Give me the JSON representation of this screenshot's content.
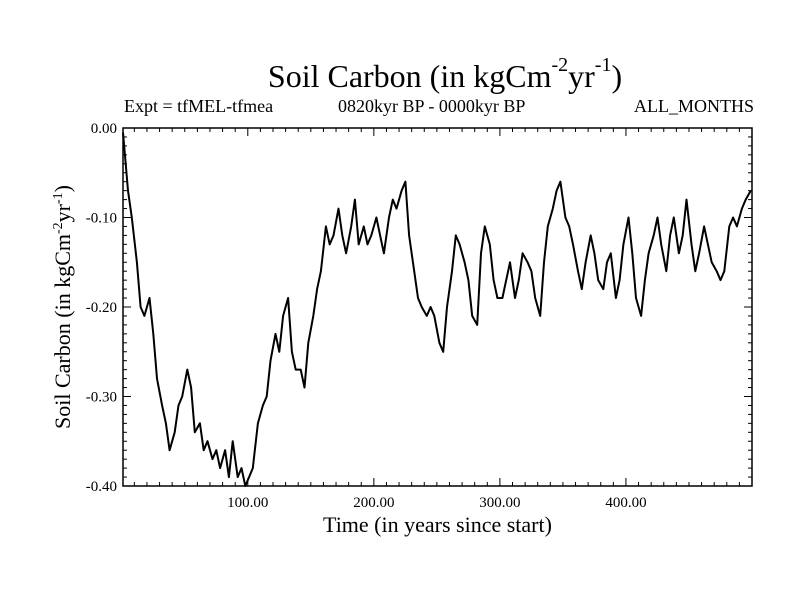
{
  "chart_data": {
    "type": "line",
    "title": "Soil Carbon (in kgCm-2yr-1)",
    "title_parts": {
      "main": "Soil Carbon (in kgCm",
      "exp1": "-2",
      "mid": "yr",
      "exp2": "-1",
      "end": ")"
    },
    "subtitle_left": "Expt = tfMEL-tfmea",
    "subtitle_center": "0820kyr BP - 0000kyr BP",
    "subtitle_right": "ALL_MONTHS",
    "xlabel": "Time (in years since start)",
    "ylabel": "Soil Carbon (in kgCm-2yr-1)",
    "xlim": [
      1,
      500
    ],
    "ylim": [
      -0.4,
      0.0
    ],
    "x_ticks": [
      100,
      200,
      300,
      400
    ],
    "x_tick_labels": [
      "100.00",
      "200.00",
      "300.00",
      "400.00"
    ],
    "y_ticks": [
      0.0,
      -0.1,
      -0.2,
      -0.3,
      -0.4
    ],
    "y_tick_labels": [
      "0.00",
      "-0.10",
      "-0.20",
      "-0.30",
      "-0.40"
    ],
    "series": [
      {
        "name": "Soil Carbon",
        "x": [
          1,
          5,
          8,
          12,
          15,
          18,
          22,
          25,
          28,
          32,
          35,
          38,
          42,
          45,
          48,
          52,
          55,
          58,
          62,
          65,
          68,
          72,
          75,
          78,
          82,
          85,
          88,
          92,
          95,
          98,
          101,
          104,
          108,
          112,
          115,
          118,
          122,
          125,
          128,
          132,
          135,
          138,
          142,
          145,
          148,
          152,
          155,
          158,
          162,
          165,
          168,
          172,
          175,
          178,
          182,
          185,
          188,
          192,
          195,
          198,
          202,
          205,
          208,
          212,
          215,
          218,
          222,
          225,
          228,
          232,
          235,
          238,
          242,
          245,
          248,
          252,
          255,
          258,
          262,
          265,
          268,
          272,
          275,
          278,
          282,
          285,
          288,
          292,
          295,
          298,
          302,
          305,
          308,
          312,
          315,
          318,
          322,
          325,
          328,
          332,
          335,
          338,
          342,
          345,
          348,
          352,
          355,
          358,
          362,
          365,
          368,
          372,
          375,
          378,
          382,
          385,
          388,
          392,
          395,
          398,
          402,
          405,
          408,
          412,
          415,
          418,
          422,
          425,
          428,
          432,
          435,
          438,
          442,
          445,
          448,
          452,
          455,
          458,
          462,
          465,
          468,
          472,
          475,
          478,
          482,
          485,
          488,
          492,
          495,
          499
        ],
        "values": [
          -0.005,
          -0.07,
          -0.1,
          -0.15,
          -0.2,
          -0.21,
          -0.19,
          -0.23,
          -0.28,
          -0.31,
          -0.33,
          -0.36,
          -0.34,
          -0.31,
          -0.3,
          -0.27,
          -0.29,
          -0.34,
          -0.33,
          -0.36,
          -0.35,
          -0.37,
          -0.36,
          -0.38,
          -0.36,
          -0.39,
          -0.35,
          -0.39,
          -0.38,
          -0.4,
          -0.39,
          -0.38,
          -0.33,
          -0.31,
          -0.3,
          -0.26,
          -0.23,
          -0.25,
          -0.21,
          -0.19,
          -0.25,
          -0.27,
          -0.27,
          -0.29,
          -0.24,
          -0.21,
          -0.18,
          -0.16,
          -0.11,
          -0.13,
          -0.12,
          -0.09,
          -0.12,
          -0.14,
          -0.11,
          -0.08,
          -0.13,
          -0.11,
          -0.13,
          -0.12,
          -0.1,
          -0.12,
          -0.14,
          -0.1,
          -0.08,
          -0.09,
          -0.07,
          -0.06,
          -0.12,
          -0.16,
          -0.19,
          -0.2,
          -0.21,
          -0.2,
          -0.21,
          -0.24,
          -0.25,
          -0.2,
          -0.16,
          -0.12,
          -0.13,
          -0.15,
          -0.17,
          -0.21,
          -0.22,
          -0.14,
          -0.11,
          -0.13,
          -0.17,
          -0.19,
          -0.19,
          -0.17,
          -0.15,
          -0.19,
          -0.17,
          -0.14,
          -0.15,
          -0.16,
          -0.19,
          -0.21,
          -0.15,
          -0.11,
          -0.09,
          -0.07,
          -0.06,
          -0.1,
          -0.11,
          -0.13,
          -0.16,
          -0.18,
          -0.15,
          -0.12,
          -0.14,
          -0.17,
          -0.18,
          -0.15,
          -0.14,
          -0.19,
          -0.17,
          -0.13,
          -0.1,
          -0.14,
          -0.19,
          -0.21,
          -0.17,
          -0.14,
          -0.12,
          -0.1,
          -0.13,
          -0.16,
          -0.12,
          -0.1,
          -0.14,
          -0.12,
          -0.08,
          -0.13,
          -0.16,
          -0.14,
          -0.11,
          -0.13,
          -0.15,
          -0.16,
          -0.17,
          -0.16,
          -0.11,
          -0.1,
          -0.11,
          -0.09,
          -0.08,
          -0.07
        ]
      }
    ]
  }
}
